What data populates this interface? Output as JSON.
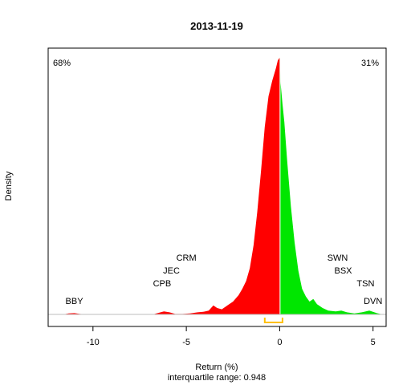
{
  "chart_data": {
    "type": "area",
    "title": "2013-11-19",
    "xlabel": "Return (%)",
    "ylabel": "Density",
    "subtitle": "interquartile range: 0.948",
    "xlim": [
      -12.4,
      5.7
    ],
    "ylim": [
      0,
      1
    ],
    "x_ticks": [
      -10,
      -5,
      0,
      5
    ],
    "x_tick_labels": [
      "-10",
      "-5",
      "0",
      "5"
    ],
    "split_at": 0,
    "pct_negative": "68%",
    "pct_positive": "31%",
    "colors": {
      "negative": "#ff0000",
      "positive": "#00e600",
      "neg_text": "#ff0000",
      "pos_text": "#009900",
      "iqr": "#ffc000",
      "baseline": "#bebebe"
    },
    "iqr_range": [
      -0.8,
      0.15
    ],
    "density": [
      [
        -11.6,
        0
      ],
      [
        -11.3,
        0.004
      ],
      [
        -11.0,
        0.005
      ],
      [
        -10.7,
        0.002
      ],
      [
        -10.3,
        0
      ],
      [
        -6.8,
        0
      ],
      [
        -6.5,
        0.006
      ],
      [
        -6.2,
        0.012
      ],
      [
        -5.9,
        0.008
      ],
      [
        -5.6,
        0.002
      ],
      [
        -5.2,
        0.002
      ],
      [
        -4.8,
        0.004
      ],
      [
        -4.4,
        0.008
      ],
      [
        -4.1,
        0.01
      ],
      [
        -3.8,
        0.015
      ],
      [
        -3.55,
        0.035
      ],
      [
        -3.35,
        0.025
      ],
      [
        -3.1,
        0.02
      ],
      [
        -2.8,
        0.035
      ],
      [
        -2.5,
        0.05
      ],
      [
        -2.2,
        0.075
      ],
      [
        -2.0,
        0.1
      ],
      [
        -1.8,
        0.13
      ],
      [
        -1.6,
        0.18
      ],
      [
        -1.4,
        0.27
      ],
      [
        -1.2,
        0.4
      ],
      [
        -1.0,
        0.56
      ],
      [
        -0.8,
        0.73
      ],
      [
        -0.6,
        0.85
      ],
      [
        -0.4,
        0.91
      ],
      [
        -0.2,
        0.96
      ],
      [
        -0.1,
        0.99
      ],
      [
        0.0,
        1.0
      ],
      [
        0.05,
        0.9
      ],
      [
        0.15,
        0.82
      ],
      [
        0.25,
        0.75
      ],
      [
        0.4,
        0.6
      ],
      [
        0.6,
        0.42
      ],
      [
        0.8,
        0.28
      ],
      [
        1.0,
        0.17
      ],
      [
        1.2,
        0.1
      ],
      [
        1.4,
        0.07
      ],
      [
        1.6,
        0.05
      ],
      [
        1.8,
        0.06
      ],
      [
        2.0,
        0.04
      ],
      [
        2.3,
        0.025
      ],
      [
        2.6,
        0.015
      ],
      [
        3.0,
        0.012
      ],
      [
        3.3,
        0.015
      ],
      [
        3.6,
        0.008
      ],
      [
        4.0,
        0.004
      ],
      [
        4.4,
        0.008
      ],
      [
        4.8,
        0.015
      ],
      [
        5.2,
        0.005
      ],
      [
        5.5,
        0
      ]
    ],
    "annotations": [
      {
        "label": "BBY",
        "x": -11.0,
        "y": 0.04
      },
      {
        "label": "CPB",
        "x": -6.3,
        "y": 0.11
      },
      {
        "label": "JEC",
        "x": -5.8,
        "y": 0.16
      },
      {
        "label": "CRM",
        "x": -5.0,
        "y": 0.21
      },
      {
        "label": "SWN",
        "x": 3.1,
        "y": 0.21
      },
      {
        "label": "BSX",
        "x": 3.4,
        "y": 0.16
      },
      {
        "label": "TSN",
        "x": 4.6,
        "y": 0.11
      },
      {
        "label": "DVN",
        "x": 5.0,
        "y": 0.04
      }
    ]
  }
}
